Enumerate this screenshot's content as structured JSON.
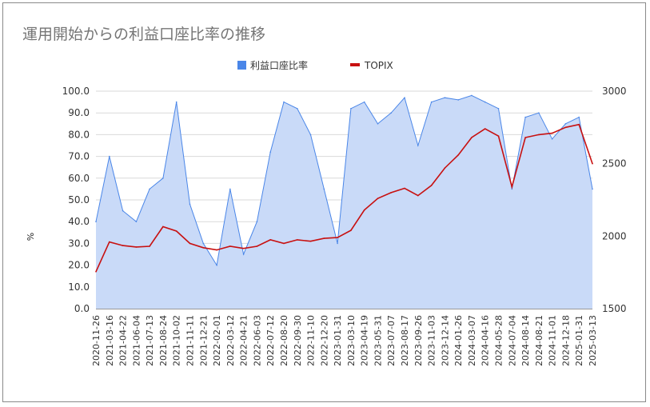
{
  "chart_data": {
    "type": "area+line",
    "title": "運用開始からの利益口座比率の推移",
    "ylabel_left": "%",
    "ylim_left": [
      0,
      100
    ],
    "yticks_left": [
      "100.0",
      "90.0",
      "80.0",
      "70.0",
      "60.0",
      "50.0",
      "40.0",
      "30.0",
      "20.0",
      "10.0",
      "0.0"
    ],
    "ylim_right": [
      1500,
      3000
    ],
    "yticks_right": [
      "3000",
      "2500",
      "2000",
      "1500"
    ],
    "x_tick_labels": [
      "2020-11-26",
      "2021-03-16",
      "2021-04-22",
      "2021-06-04",
      "2021-07-13",
      "2021-08-24",
      "2021-10-02",
      "2021-11-11",
      "2021-12-21",
      "2022-02-01",
      "2022-03-12",
      "2022-04-21",
      "2022-06-03",
      "2022-07-12",
      "2022-08-20",
      "2022-09-30",
      "2022-11-10",
      "2022-12-20",
      "2023-01-31",
      "2023-03-10",
      "2023-04-19",
      "2023-05-31",
      "2023-07-07",
      "2023-08-17",
      "2023-09-26",
      "2023-11-03",
      "2023-12-14",
      "2024-01-26",
      "2024-03-07",
      "2024-04-16",
      "2024-05-28",
      "2024-07-04",
      "2024-08-14",
      "2024-08-21",
      "2024-11-01",
      "2024-12-18",
      "2025-01-31",
      "2025-03-13"
    ],
    "legend": "top-center",
    "grid": true,
    "series": [
      {
        "name": "利益口座比率",
        "color": "#4a86e8",
        "fill": "#c9daf8",
        "x_index": [
          0,
          1,
          2,
          3,
          4,
          5,
          6,
          7,
          8,
          9,
          10,
          11,
          12,
          13,
          14,
          15,
          16,
          17,
          18,
          19,
          20,
          21,
          22,
          23,
          24,
          25,
          26,
          27,
          28,
          29,
          30,
          31,
          32,
          33,
          34,
          35,
          36,
          37
        ],
        "values": [
          40,
          70,
          45,
          40,
          55,
          60,
          95,
          48,
          30,
          20,
          55,
          25,
          40,
          72,
          95,
          92,
          80,
          55,
          30,
          92,
          95,
          85,
          90,
          97,
          75,
          95,
          97,
          96,
          98,
          95,
          92,
          55,
          88,
          90,
          78,
          85,
          88,
          55
        ]
      },
      {
        "name": "TOPIX",
        "color": "#c81010",
        "x_index": [
          0,
          1,
          2,
          3,
          4,
          5,
          6,
          7,
          8,
          9,
          10,
          11,
          12,
          13,
          14,
          15,
          16,
          17,
          18,
          19,
          20,
          21,
          22,
          23,
          24,
          25,
          26,
          27,
          28,
          29,
          30,
          31,
          32,
          33,
          34,
          35,
          36,
          37
        ],
        "values": [
          1755,
          1960,
          1935,
          1925,
          1930,
          2065,
          2035,
          1950,
          1920,
          1905,
          1930,
          1915,
          1930,
          1975,
          1950,
          1975,
          1965,
          1985,
          1990,
          2040,
          2180,
          2260,
          2300,
          2330,
          2280,
          2350,
          2470,
          2560,
          2680,
          2740,
          2690,
          2340,
          2680,
          2700,
          2710,
          2750,
          2770,
          2500
        ]
      }
    ]
  }
}
